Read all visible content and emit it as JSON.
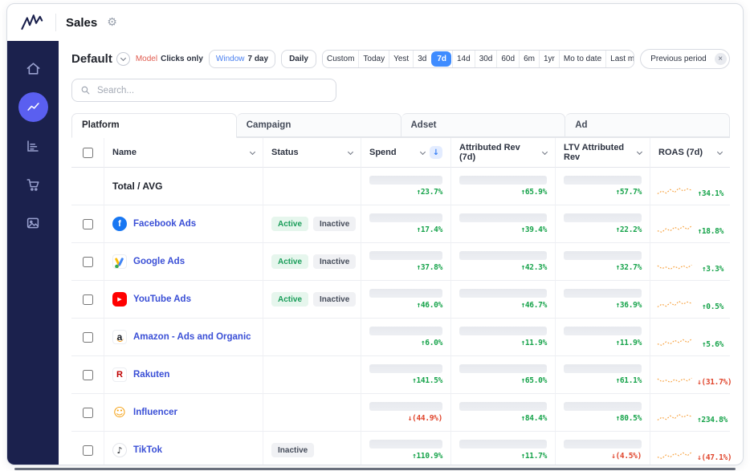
{
  "app": {
    "title": "Sales"
  },
  "colors": {
    "accent": "#5a5ff0",
    "sidebar_bg": "#1b214d",
    "selected_range": "#3f8cff",
    "link": "#3a4fd6",
    "positive": "#16a34a",
    "negative": "#e0452c",
    "sparkline": "#f7a13d"
  },
  "sidebar": {
    "items": [
      {
        "id": "home",
        "icon": "home-icon",
        "active": false
      },
      {
        "id": "line-chart",
        "icon": "line-chart-icon",
        "active": true
      },
      {
        "id": "bar-chart",
        "icon": "bar-chart-icon",
        "active": false
      },
      {
        "id": "cart",
        "icon": "cart-icon",
        "active": false
      },
      {
        "id": "image",
        "icon": "image-icon",
        "active": false
      }
    ]
  },
  "toolbar": {
    "view_name": "Default",
    "model_label": "Model",
    "model_value": "Clicks only",
    "window_label": "Window",
    "window_value": "7 day",
    "granularity": "Daily",
    "ranges": [
      "Custom",
      "Today",
      "Yest",
      "3d",
      "7d",
      "14d",
      "30d",
      "60d",
      "6m",
      "1yr",
      "Mo to date",
      "Last mo"
    ],
    "selected_range": "7d",
    "compare_value": "Previous period"
  },
  "search": {
    "placeholder": "Search..."
  },
  "tabs": [
    {
      "label": "Platform",
      "active": true
    },
    {
      "label": "Campaign",
      "active": false
    },
    {
      "label": "Adset",
      "active": false
    },
    {
      "label": "Ad",
      "active": false
    }
  ],
  "table": {
    "columns": [
      {
        "label": "Name",
        "sorted": false
      },
      {
        "label": "Status",
        "sorted": false
      },
      {
        "label": "Spend",
        "sorted": true
      },
      {
        "label": "Attributed Rev (7d)",
        "sorted": false
      },
      {
        "label": "LTV Attributed Rev",
        "sorted": false
      },
      {
        "label": "ROAS (7d)",
        "sorted": false
      }
    ],
    "rows": [
      {
        "name": "Total / AVG",
        "is_total": true,
        "icon": null,
        "statuses": [],
        "metrics": [
          {
            "text": "↑23.7%",
            "dir": "up"
          },
          {
            "text": "↑65.9%",
            "dir": "up"
          },
          {
            "text": "↑57.7%",
            "dir": "up"
          },
          {
            "text": "↑34.1%",
            "dir": "up"
          }
        ]
      },
      {
        "name": "Facebook Ads",
        "is_total": false,
        "icon": "facebook-icon",
        "statuses": [
          "Active",
          "Inactive"
        ],
        "metrics": [
          {
            "text": "↑17.4%",
            "dir": "up"
          },
          {
            "text": "↑39.4%",
            "dir": "up"
          },
          {
            "text": "↑22.2%",
            "dir": "up"
          },
          {
            "text": "↑18.8%",
            "dir": "up"
          }
        ]
      },
      {
        "name": "Google Ads",
        "is_total": false,
        "icon": "google-ads-icon",
        "statuses": [
          "Active",
          "Inactive"
        ],
        "metrics": [
          {
            "text": "↑37.8%",
            "dir": "up"
          },
          {
            "text": "↑42.3%",
            "dir": "up"
          },
          {
            "text": "↑32.7%",
            "dir": "up"
          },
          {
            "text": "↑3.3%",
            "dir": "up"
          }
        ]
      },
      {
        "name": "YouTube Ads",
        "is_total": false,
        "icon": "youtube-icon",
        "statuses": [
          "Active",
          "Inactive"
        ],
        "metrics": [
          {
            "text": "↑46.0%",
            "dir": "up"
          },
          {
            "text": "↑46.7%",
            "dir": "up"
          },
          {
            "text": "↑36.9%",
            "dir": "up"
          },
          {
            "text": "↑0.5%",
            "dir": "up"
          }
        ]
      },
      {
        "name": "Amazon - Ads and Organic",
        "is_total": false,
        "icon": "amazon-icon",
        "statuses": [],
        "metrics": [
          {
            "text": "↑6.0%",
            "dir": "up"
          },
          {
            "text": "↑11.9%",
            "dir": "up"
          },
          {
            "text": "↑11.9%",
            "dir": "up"
          },
          {
            "text": "↑5.6%",
            "dir": "up"
          }
        ]
      },
      {
        "name": "Rakuten",
        "is_total": false,
        "icon": "rakuten-icon",
        "statuses": [],
        "metrics": [
          {
            "text": "↑141.5%",
            "dir": "up"
          },
          {
            "text": "↑65.0%",
            "dir": "up"
          },
          {
            "text": "↑61.1%",
            "dir": "up"
          },
          {
            "text": "↓(31.7%)",
            "dir": "down"
          }
        ]
      },
      {
        "name": "Influencer",
        "is_total": false,
        "icon": "influencer-icon",
        "statuses": [],
        "metrics": [
          {
            "text": "↓(44.9%)",
            "dir": "down"
          },
          {
            "text": "↑84.4%",
            "dir": "up"
          },
          {
            "text": "↑80.5%",
            "dir": "up"
          },
          {
            "text": "↑234.8%",
            "dir": "up"
          }
        ]
      },
      {
        "name": "TikTok",
        "is_total": false,
        "icon": "tiktok-icon",
        "statuses": [
          "Inactive"
        ],
        "metrics": [
          {
            "text": "↑110.9%",
            "dir": "up"
          },
          {
            "text": "↑11.7%",
            "dir": "up"
          },
          {
            "text": "↓(4.5%)",
            "dir": "down"
          },
          {
            "text": "↓(47.1%)",
            "dir": "down"
          }
        ]
      }
    ]
  }
}
